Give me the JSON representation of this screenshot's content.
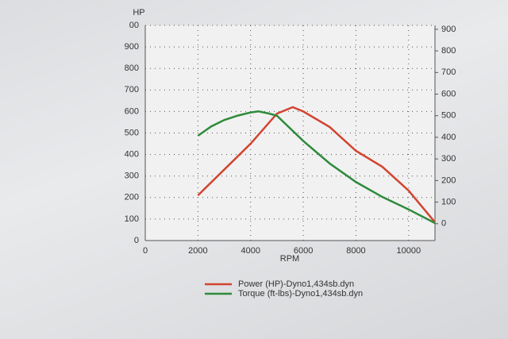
{
  "chart_data": {
    "type": "line",
    "ylabel": "HP",
    "xlabel": "RPM",
    "xlim": [
      0,
      11000
    ],
    "xticks": [
      0,
      2000,
      4000,
      6000,
      8000,
      10000
    ],
    "ylim": [
      0,
      1000
    ],
    "yticks": [
      0,
      100,
      200,
      300,
      400,
      500,
      600,
      700,
      800,
      900,
      {
        "value": 1000,
        "label": "00"
      }
    ],
    "y2lim": [
      -78,
      918
    ],
    "y2ticks": [
      0,
      100,
      200,
      300,
      400,
      500,
      600,
      700,
      800,
      900
    ],
    "grid": true,
    "series": [
      {
        "name": "Power (HP)-Dyno1,434sb.dyn",
        "color": "#d2442f",
        "x": [
          2000,
          3000,
          4000,
          5000,
          5600,
          6000,
          7000,
          8000,
          9000,
          10000,
          11000
        ],
        "values": [
          210,
          330,
          450,
          590,
          620,
          600,
          528,
          417,
          343,
          232,
          85
        ]
      },
      {
        "name": "Torque (ft-lbs)-Dyno1,434sb.dyn",
        "color": "#2e8b3a",
        "axis": "y2",
        "x": [
          2000,
          2500,
          3000,
          3500,
          4000,
          4300,
          4700,
          5000,
          6000,
          7000,
          8000,
          9000,
          10000,
          11000
        ],
        "values": [
          407,
          450,
          480,
          500,
          515,
          520,
          510,
          500,
          383,
          279,
          193,
          124,
          66,
          3
        ]
      }
    ]
  }
}
